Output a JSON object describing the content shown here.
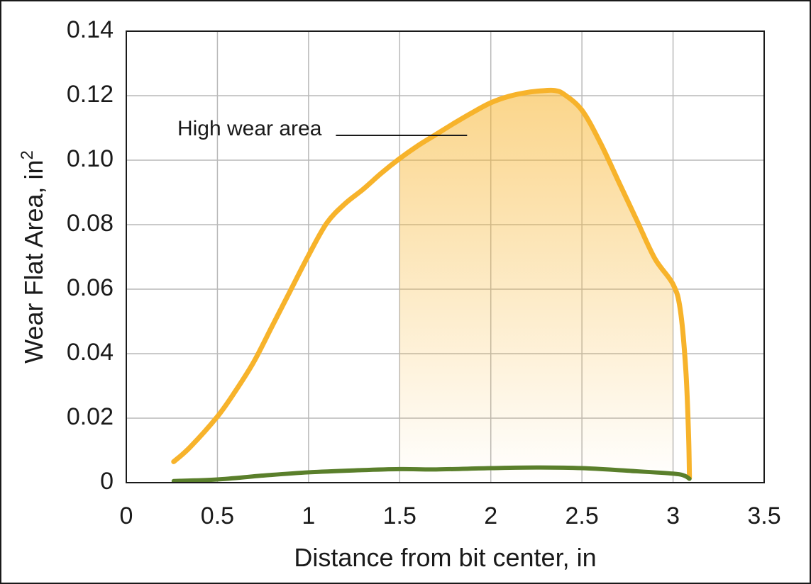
{
  "chart_data": {
    "type": "line",
    "title": "",
    "xlabel": "Distance from bit center, in",
    "ylabel": "Wear Flat Area, in",
    "ylabel_superscript": "2",
    "xlim": [
      0,
      3.5
    ],
    "ylim": [
      0,
      0.14
    ],
    "x_ticks": [
      0,
      0.5,
      1,
      1.5,
      2,
      2.5,
      3,
      3.5
    ],
    "x_tick_labels": [
      "0",
      "0.5",
      "1",
      "1.5",
      "2",
      "2.5",
      "3",
      "3.5"
    ],
    "y_ticks": [
      0,
      0.02,
      0.04,
      0.06,
      0.08,
      0.1,
      0.12,
      0.14
    ],
    "y_tick_labels": [
      "0",
      "0.02",
      "0.04",
      "0.06",
      "0.08",
      "0.10",
      "0.12",
      "0.14"
    ],
    "grid": true,
    "series": [
      {
        "color": "#f7b32b",
        "points": [
          [
            0.26,
            0.0065
          ],
          [
            0.35,
            0.011
          ],
          [
            0.5,
            0.0205
          ],
          [
            0.6,
            0.0285
          ],
          [
            0.7,
            0.0375
          ],
          [
            0.8,
            0.0485
          ],
          [
            0.9,
            0.0595
          ],
          [
            1.0,
            0.0705
          ],
          [
            1.1,
            0.0805
          ],
          [
            1.2,
            0.0865
          ],
          [
            1.3,
            0.091
          ],
          [
            1.4,
            0.096
          ],
          [
            1.5,
            0.1005
          ],
          [
            1.6,
            0.1045
          ],
          [
            1.7,
            0.108
          ],
          [
            1.8,
            0.1115
          ],
          [
            1.9,
            0.1148
          ],
          [
            2.0,
            0.1178
          ],
          [
            2.1,
            0.1198
          ],
          [
            2.2,
            0.121
          ],
          [
            2.3,
            0.1216
          ],
          [
            2.35,
            0.1216
          ],
          [
            2.4,
            0.1205
          ],
          [
            2.5,
            0.1155
          ],
          [
            2.6,
            0.1055
          ],
          [
            2.7,
            0.0935
          ],
          [
            2.8,
            0.0815
          ],
          [
            2.9,
            0.0695
          ],
          [
            3.0,
            0.0615
          ],
          [
            3.04,
            0.0535
          ],
          [
            3.07,
            0.035
          ],
          [
            3.085,
            0.015
          ],
          [
            3.09,
            0.0015
          ]
        ]
      },
      {
        "color": "#5a7f2b",
        "points": [
          [
            0.26,
            0.0005
          ],
          [
            0.5,
            0.001
          ],
          [
            0.75,
            0.0022
          ],
          [
            1.0,
            0.0032
          ],
          [
            1.25,
            0.0038
          ],
          [
            1.5,
            0.0042
          ],
          [
            1.7,
            0.0041
          ],
          [
            2.0,
            0.0045
          ],
          [
            2.25,
            0.0047
          ],
          [
            2.5,
            0.0045
          ],
          [
            2.75,
            0.0037
          ],
          [
            3.0,
            0.0028
          ],
          [
            3.06,
            0.0022
          ],
          [
            3.09,
            0.0012
          ]
        ]
      }
    ],
    "highlight": {
      "x_range": [
        1.5,
        3.0
      ],
      "color": "#f7b32b"
    },
    "annotation": {
      "text": "High wear area",
      "leader_x": [
        1.15,
        1.87
      ],
      "leader_y": 0.1077
    }
  }
}
